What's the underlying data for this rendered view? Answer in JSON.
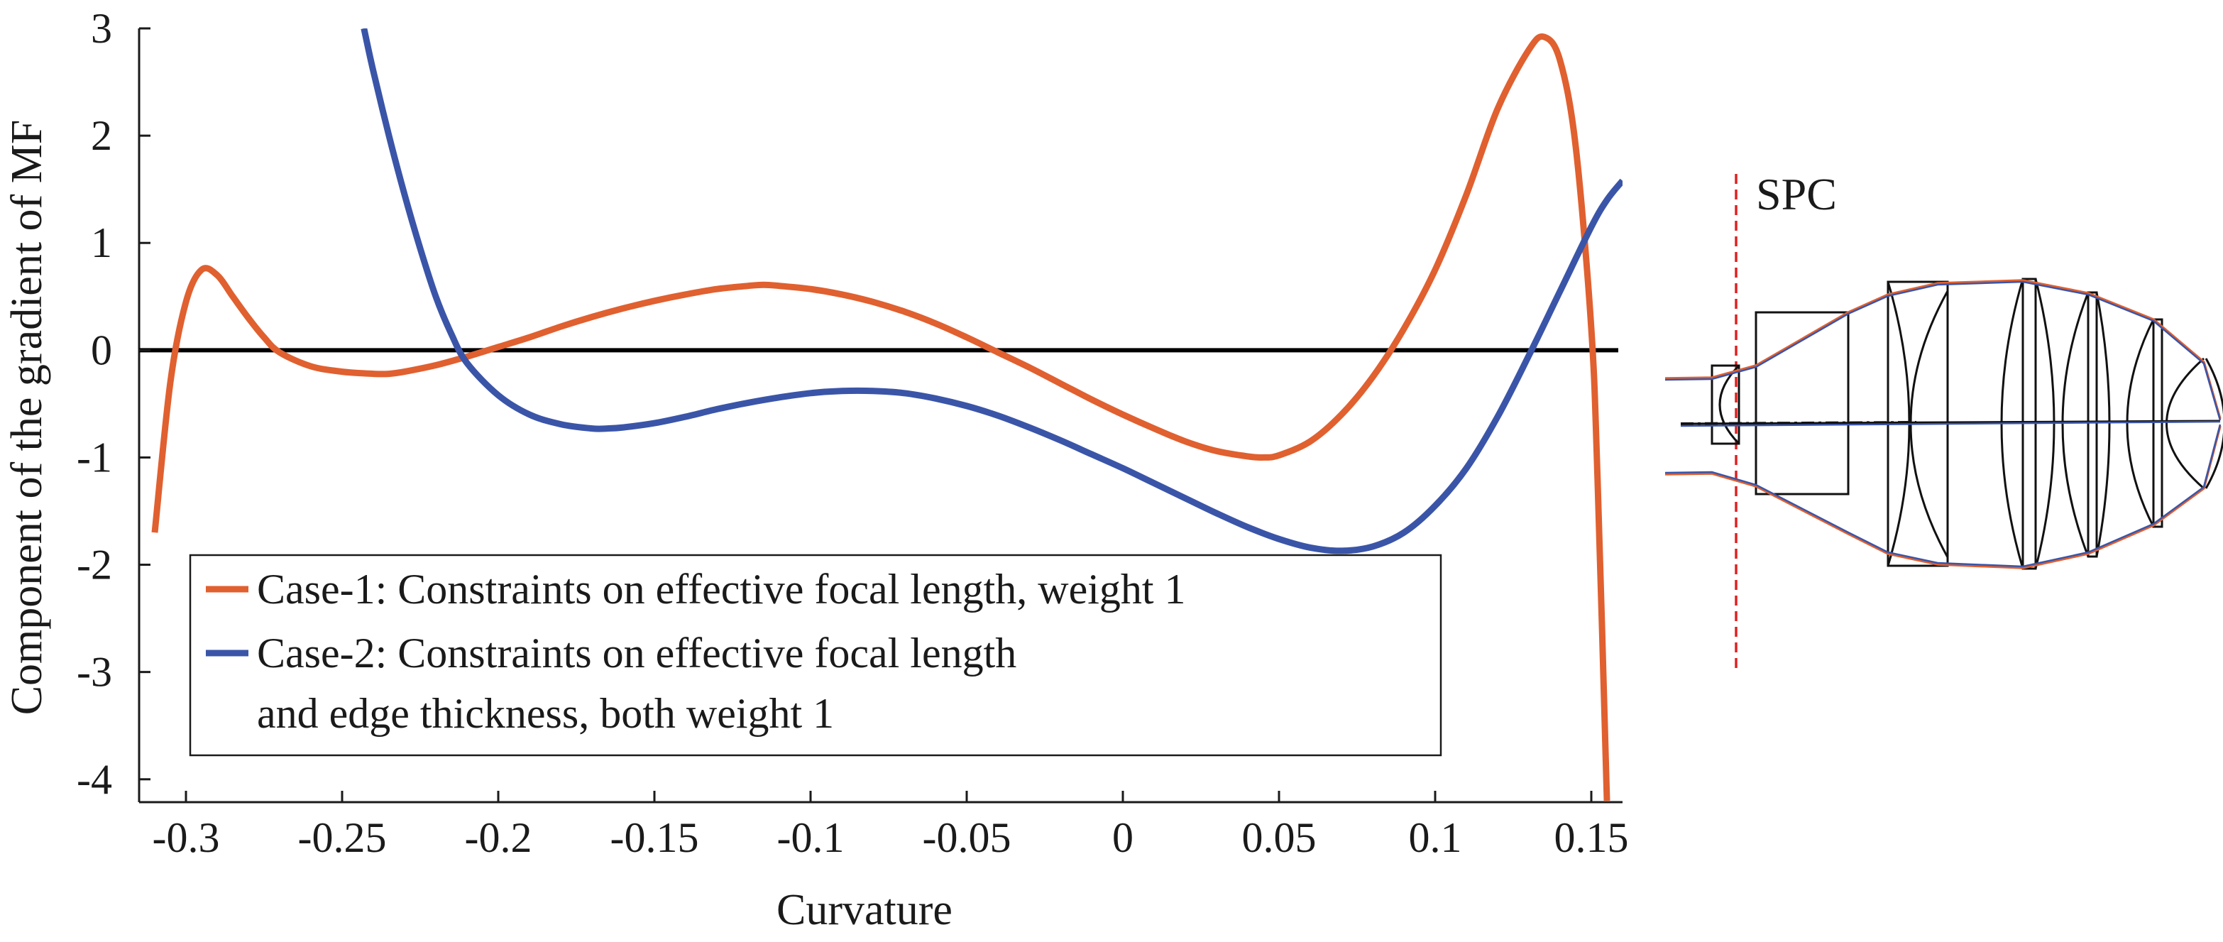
{
  "chart_data": {
    "type": "line",
    "title": "",
    "xlabel": "Curvature",
    "ylabel": "Component of the gradient of MF",
    "xlim": [
      -0.315,
      0.16
    ],
    "ylim": [
      -4.2,
      3.0
    ],
    "xticks": [
      -0.3,
      -0.25,
      -0.2,
      -0.15,
      -0.1,
      -0.05,
      0,
      0.05,
      0.1,
      0.15
    ],
    "xtick_labels": [
      "-0.3",
      "-0.25",
      "-0.2",
      "-0.15",
      "-0.1",
      "-0.05",
      "0",
      "0.05",
      "0.1",
      "0.15"
    ],
    "yticks": [
      3,
      2,
      1,
      0,
      -1,
      -2,
      -3,
      -4
    ],
    "ytick_labels": [
      "3",
      "2",
      "1",
      "0",
      "-1",
      "-2",
      "-3",
      "-4"
    ],
    "zero_line": true,
    "grid": false,
    "legend_position": "bottom-left",
    "series": [
      {
        "name": "Case-1: Constraints on effective focal length, weight 1",
        "color": "#e06030",
        "x": [
          -0.31,
          -0.305,
          -0.3,
          -0.295,
          -0.29,
          -0.285,
          -0.28,
          -0.275,
          -0.27,
          -0.26,
          -0.25,
          -0.24,
          -0.235,
          -0.23,
          -0.22,
          -0.21,
          -0.2,
          -0.19,
          -0.18,
          -0.17,
          -0.16,
          -0.15,
          -0.14,
          -0.13,
          -0.12,
          -0.115,
          -0.11,
          -0.1,
          -0.09,
          -0.08,
          -0.07,
          -0.06,
          -0.05,
          -0.04,
          -0.03,
          -0.02,
          -0.01,
          0,
          0.01,
          0.02,
          0.03,
          0.04,
          0.045,
          0.05,
          0.06,
          0.07,
          0.08,
          0.09,
          0.1,
          0.11,
          0.12,
          0.13,
          0.135,
          0.14,
          0.145,
          0.15,
          0.152,
          0.155
        ],
        "y": [
          -1.7,
          -0.3,
          0.45,
          0.75,
          0.7,
          0.5,
          0.3,
          0.12,
          -0.02,
          -0.15,
          -0.2,
          -0.22,
          -0.22,
          -0.2,
          -0.14,
          -0.06,
          0.03,
          0.12,
          0.22,
          0.31,
          0.39,
          0.46,
          0.52,
          0.57,
          0.6,
          0.61,
          0.6,
          0.57,
          0.52,
          0.45,
          0.36,
          0.25,
          0.12,
          -0.02,
          -0.16,
          -0.31,
          -0.46,
          -0.6,
          -0.73,
          -0.85,
          -0.94,
          -0.99,
          -1.0,
          -0.98,
          -0.85,
          -0.6,
          -0.25,
          0.2,
          0.75,
          1.45,
          2.25,
          2.8,
          2.92,
          2.7,
          1.9,
          0.2,
          -1.2,
          -4.2
        ]
      },
      {
        "name": "Case-2: Constraints on effective focal length and edge thickness, both weight 1",
        "color": "#3a55a8",
        "x": [
          -0.243,
          -0.24,
          -0.235,
          -0.23,
          -0.225,
          -0.22,
          -0.215,
          -0.21,
          -0.2,
          -0.19,
          -0.18,
          -0.17,
          -0.165,
          -0.16,
          -0.15,
          -0.14,
          -0.13,
          -0.12,
          -0.11,
          -0.1,
          -0.09,
          -0.08,
          -0.07,
          -0.06,
          -0.05,
          -0.04,
          -0.03,
          -0.02,
          -0.01,
          0,
          0.01,
          0.02,
          0.03,
          0.04,
          0.05,
          0.06,
          0.07,
          0.08,
          0.09,
          0.1,
          0.11,
          0.12,
          0.13,
          0.14,
          0.15,
          0.155,
          0.16
        ],
        "y": [
          3.0,
          2.6,
          2.0,
          1.45,
          0.95,
          0.5,
          0.15,
          -0.12,
          -0.42,
          -0.6,
          -0.69,
          -0.73,
          -0.73,
          -0.72,
          -0.68,
          -0.62,
          -0.55,
          -0.49,
          -0.44,
          -0.4,
          -0.38,
          -0.38,
          -0.4,
          -0.45,
          -0.52,
          -0.61,
          -0.72,
          -0.84,
          -0.97,
          -1.1,
          -1.24,
          -1.38,
          -1.52,
          -1.65,
          -1.76,
          -1.84,
          -1.87,
          -1.83,
          -1.7,
          -1.45,
          -1.1,
          -0.62,
          -0.05,
          0.55,
          1.15,
          1.4,
          1.58
        ]
      }
    ]
  },
  "legend": {
    "case1_line1": "Case-1: Constraints on effective focal length, weight 1",
    "case2_line1": "Case-2: Constraints on effective focal length",
    "case2_line2": "and edge thickness, both weight 1"
  },
  "lens_diagram": {
    "label": "SPC",
    "marker_color": "#e02020",
    "line_color": "#111111",
    "ray_color_1": "#e06030",
    "ray_color_2": "#3a55a8"
  }
}
